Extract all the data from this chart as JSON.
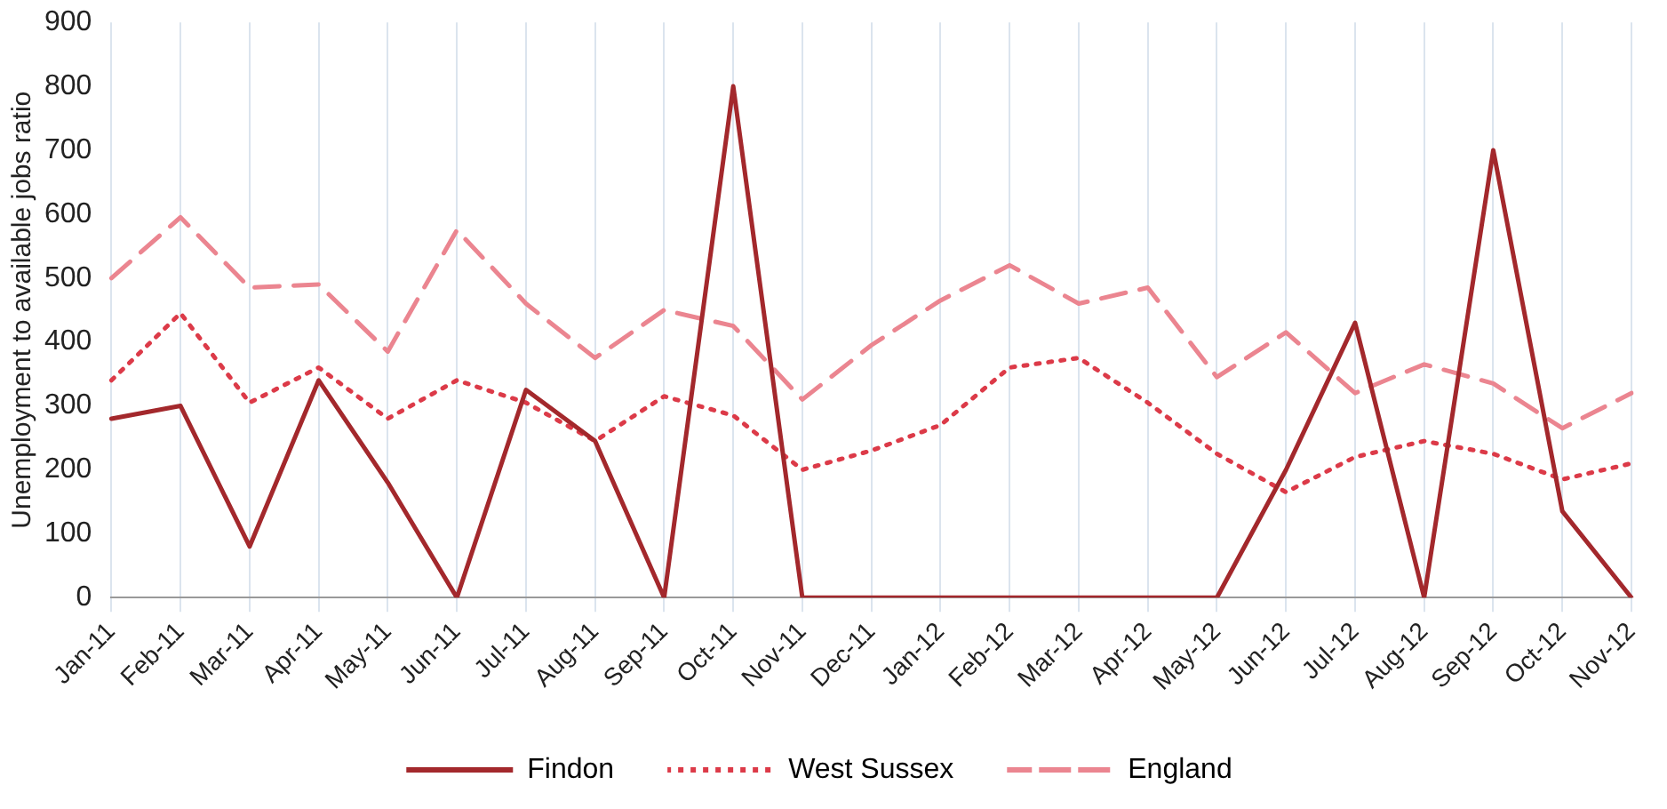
{
  "chart_data": {
    "type": "line",
    "ylabel": "Unemployment to available jobs ratio",
    "categories": [
      "Jan-11",
      "Feb-11",
      "Mar-11",
      "Apr-11",
      "May-11",
      "Jun-11",
      "Jul-11",
      "Aug-11",
      "Sep-11",
      "Oct-11",
      "Nov-11",
      "Dec-11",
      "Jan-12",
      "Feb-12",
      "Mar-12",
      "Apr-12",
      "May-12",
      "Jun-12",
      "Jul-12",
      "Aug-12",
      "Sep-12",
      "Oct-12",
      "Nov-12"
    ],
    "series": [
      {
        "name": "Findon",
        "color": "#a3282c",
        "line_style": "solid",
        "values": [
          280,
          300,
          80,
          340,
          180,
          0,
          325,
          245,
          0,
          800,
          0,
          0,
          0,
          0,
          0,
          0,
          0,
          200,
          430,
          0,
          700,
          135,
          0
        ]
      },
      {
        "name": "West Sussex",
        "color": "#dc3a48",
        "line_style": "dotted",
        "values": [
          340,
          445,
          305,
          360,
          280,
          340,
          305,
          245,
          315,
          285,
          200,
          230,
          270,
          360,
          375,
          305,
          225,
          165,
          220,
          245,
          225,
          185,
          210
        ]
      },
      {
        "name": "England",
        "color": "#eb8590",
        "line_style": "dashed",
        "values": [
          500,
          595,
          485,
          490,
          385,
          575,
          460,
          375,
          450,
          425,
          310,
          395,
          465,
          520,
          460,
          485,
          345,
          415,
          320,
          365,
          335,
          265,
          320
        ]
      }
    ],
    "ylim": [
      0,
      900
    ],
    "yticks": [
      0,
      100,
      200,
      300,
      400,
      500,
      600,
      700,
      800,
      900
    ],
    "grid": "x",
    "legend": "bottom",
    "marker": "none"
  }
}
